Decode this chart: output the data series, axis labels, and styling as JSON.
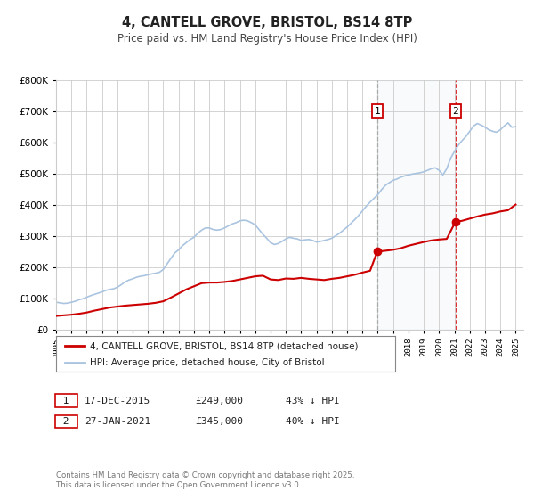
{
  "title": "4, CANTELL GROVE, BRISTOL, BS14 8TP",
  "subtitle": "Price paid vs. HM Land Registry's House Price Index (HPI)",
  "background_color": "#ffffff",
  "plot_background": "#ffffff",
  "grid_color": "#cccccc",
  "hpi_color": "#aac4e0",
  "price_color": "#cc0000",
  "sale1_vline_color": "#aaaaaa",
  "sale2_vline_color": "#dd3333",
  "ylim_max": 800000,
  "xlim_min": 1995.0,
  "xlim_max": 2025.5,
  "sale1_date": 2015.96,
  "sale1_price": 249000,
  "sale1_label": "1",
  "sale1_text": "17-DEC-2015",
  "sale1_amount": "£249,000",
  "sale1_hpi": "43% ↓ HPI",
  "sale2_date": 2021.07,
  "sale2_price": 345000,
  "sale2_label": "2",
  "sale2_text": "27-JAN-2021",
  "sale2_amount": "£345,000",
  "sale2_hpi": "40% ↓ HPI",
  "legend_label1": "4, CANTELL GROVE, BRISTOL, BS14 8TP (detached house)",
  "legend_label2": "HPI: Average price, detached house, City of Bristol",
  "footnote": "Contains HM Land Registry data © Crown copyright and database right 2025.\nThis data is licensed under the Open Government Licence v3.0.",
  "hpi_data_x": [
    1995.0,
    1995.25,
    1995.5,
    1995.75,
    1996.0,
    1996.25,
    1996.5,
    1996.75,
    1997.0,
    1997.25,
    1997.5,
    1997.75,
    1998.0,
    1998.25,
    1998.5,
    1998.75,
    1999.0,
    1999.25,
    1999.5,
    1999.75,
    2000.0,
    2000.25,
    2000.5,
    2000.75,
    2001.0,
    2001.25,
    2001.5,
    2001.75,
    2002.0,
    2002.25,
    2002.5,
    2002.75,
    2003.0,
    2003.25,
    2003.5,
    2003.75,
    2004.0,
    2004.25,
    2004.5,
    2004.75,
    2005.0,
    2005.25,
    2005.5,
    2005.75,
    2006.0,
    2006.25,
    2006.5,
    2006.75,
    2007.0,
    2007.25,
    2007.5,
    2007.75,
    2008.0,
    2008.25,
    2008.5,
    2008.75,
    2009.0,
    2009.25,
    2009.5,
    2009.75,
    2010.0,
    2010.25,
    2010.5,
    2010.75,
    2011.0,
    2011.25,
    2011.5,
    2011.75,
    2012.0,
    2012.25,
    2012.5,
    2012.75,
    2013.0,
    2013.25,
    2013.5,
    2013.75,
    2014.0,
    2014.25,
    2014.5,
    2014.75,
    2015.0,
    2015.25,
    2015.5,
    2015.75,
    2016.0,
    2016.25,
    2016.5,
    2016.75,
    2017.0,
    2017.25,
    2017.5,
    2017.75,
    2018.0,
    2018.25,
    2018.5,
    2018.75,
    2019.0,
    2019.25,
    2019.5,
    2019.75,
    2020.0,
    2020.25,
    2020.5,
    2020.75,
    2021.0,
    2021.25,
    2021.5,
    2021.75,
    2022.0,
    2022.25,
    2022.5,
    2022.75,
    2023.0,
    2023.25,
    2023.5,
    2023.75,
    2024.0,
    2024.25,
    2024.5,
    2024.75,
    2025.0
  ],
  "hpi_data_y": [
    87000,
    85000,
    83000,
    84000,
    87000,
    90000,
    95000,
    98000,
    103000,
    108000,
    112000,
    116000,
    120000,
    125000,
    128000,
    130000,
    135000,
    143000,
    152000,
    158000,
    162000,
    167000,
    170000,
    172000,
    175000,
    178000,
    180000,
    183000,
    192000,
    210000,
    228000,
    245000,
    255000,
    268000,
    278000,
    288000,
    295000,
    308000,
    318000,
    325000,
    325000,
    320000,
    318000,
    320000,
    325000,
    332000,
    338000,
    342000,
    348000,
    350000,
    348000,
    342000,
    335000,
    320000,
    305000,
    292000,
    278000,
    272000,
    275000,
    282000,
    290000,
    295000,
    292000,
    290000,
    285000,
    287000,
    288000,
    285000,
    280000,
    282000,
    285000,
    288000,
    292000,
    300000,
    308000,
    318000,
    328000,
    340000,
    352000,
    365000,
    380000,
    395000,
    408000,
    420000,
    432000,
    448000,
    462000,
    470000,
    478000,
    482000,
    488000,
    492000,
    495000,
    498000,
    500000,
    502000,
    505000,
    510000,
    515000,
    518000,
    510000,
    495000,
    515000,
    548000,
    570000,
    590000,
    605000,
    618000,
    635000,
    652000,
    660000,
    655000,
    648000,
    640000,
    635000,
    632000,
    640000,
    652000,
    662000,
    648000,
    650000
  ],
  "price_data_x": [
    1995.0,
    1995.5,
    1996.0,
    1996.5,
    1997.0,
    1997.5,
    1998.0,
    1998.5,
    1999.0,
    1999.5,
    2000.0,
    2000.5,
    2001.0,
    2001.5,
    2002.0,
    2002.5,
    2003.0,
    2003.5,
    2004.0,
    2004.5,
    2005.0,
    2005.5,
    2006.0,
    2006.5,
    2007.0,
    2007.5,
    2008.0,
    2008.5,
    2009.0,
    2009.5,
    2010.0,
    2010.5,
    2011.0,
    2011.5,
    2012.0,
    2012.5,
    2013.0,
    2013.5,
    2014.0,
    2014.5,
    2015.0,
    2015.5,
    2015.96,
    2016.5,
    2017.0,
    2017.5,
    2018.0,
    2018.5,
    2019.0,
    2019.5,
    2020.0,
    2020.5,
    2021.07,
    2021.5,
    2022.0,
    2022.5,
    2023.0,
    2023.5,
    2024.0,
    2024.5,
    2025.0
  ],
  "price_data_y": [
    43000,
    45000,
    47000,
    50000,
    54000,
    60000,
    65000,
    70000,
    73000,
    76000,
    78000,
    80000,
    82000,
    85000,
    90000,
    102000,
    115000,
    128000,
    138000,
    148000,
    150000,
    150000,
    152000,
    155000,
    160000,
    165000,
    170000,
    172000,
    160000,
    158000,
    163000,
    162000,
    165000,
    162000,
    160000,
    158000,
    162000,
    165000,
    170000,
    175000,
    182000,
    188000,
    249000,
    252000,
    255000,
    260000,
    268000,
    274000,
    280000,
    285000,
    288000,
    290000,
    345000,
    348000,
    355000,
    362000,
    368000,
    372000,
    378000,
    382000,
    400000
  ]
}
